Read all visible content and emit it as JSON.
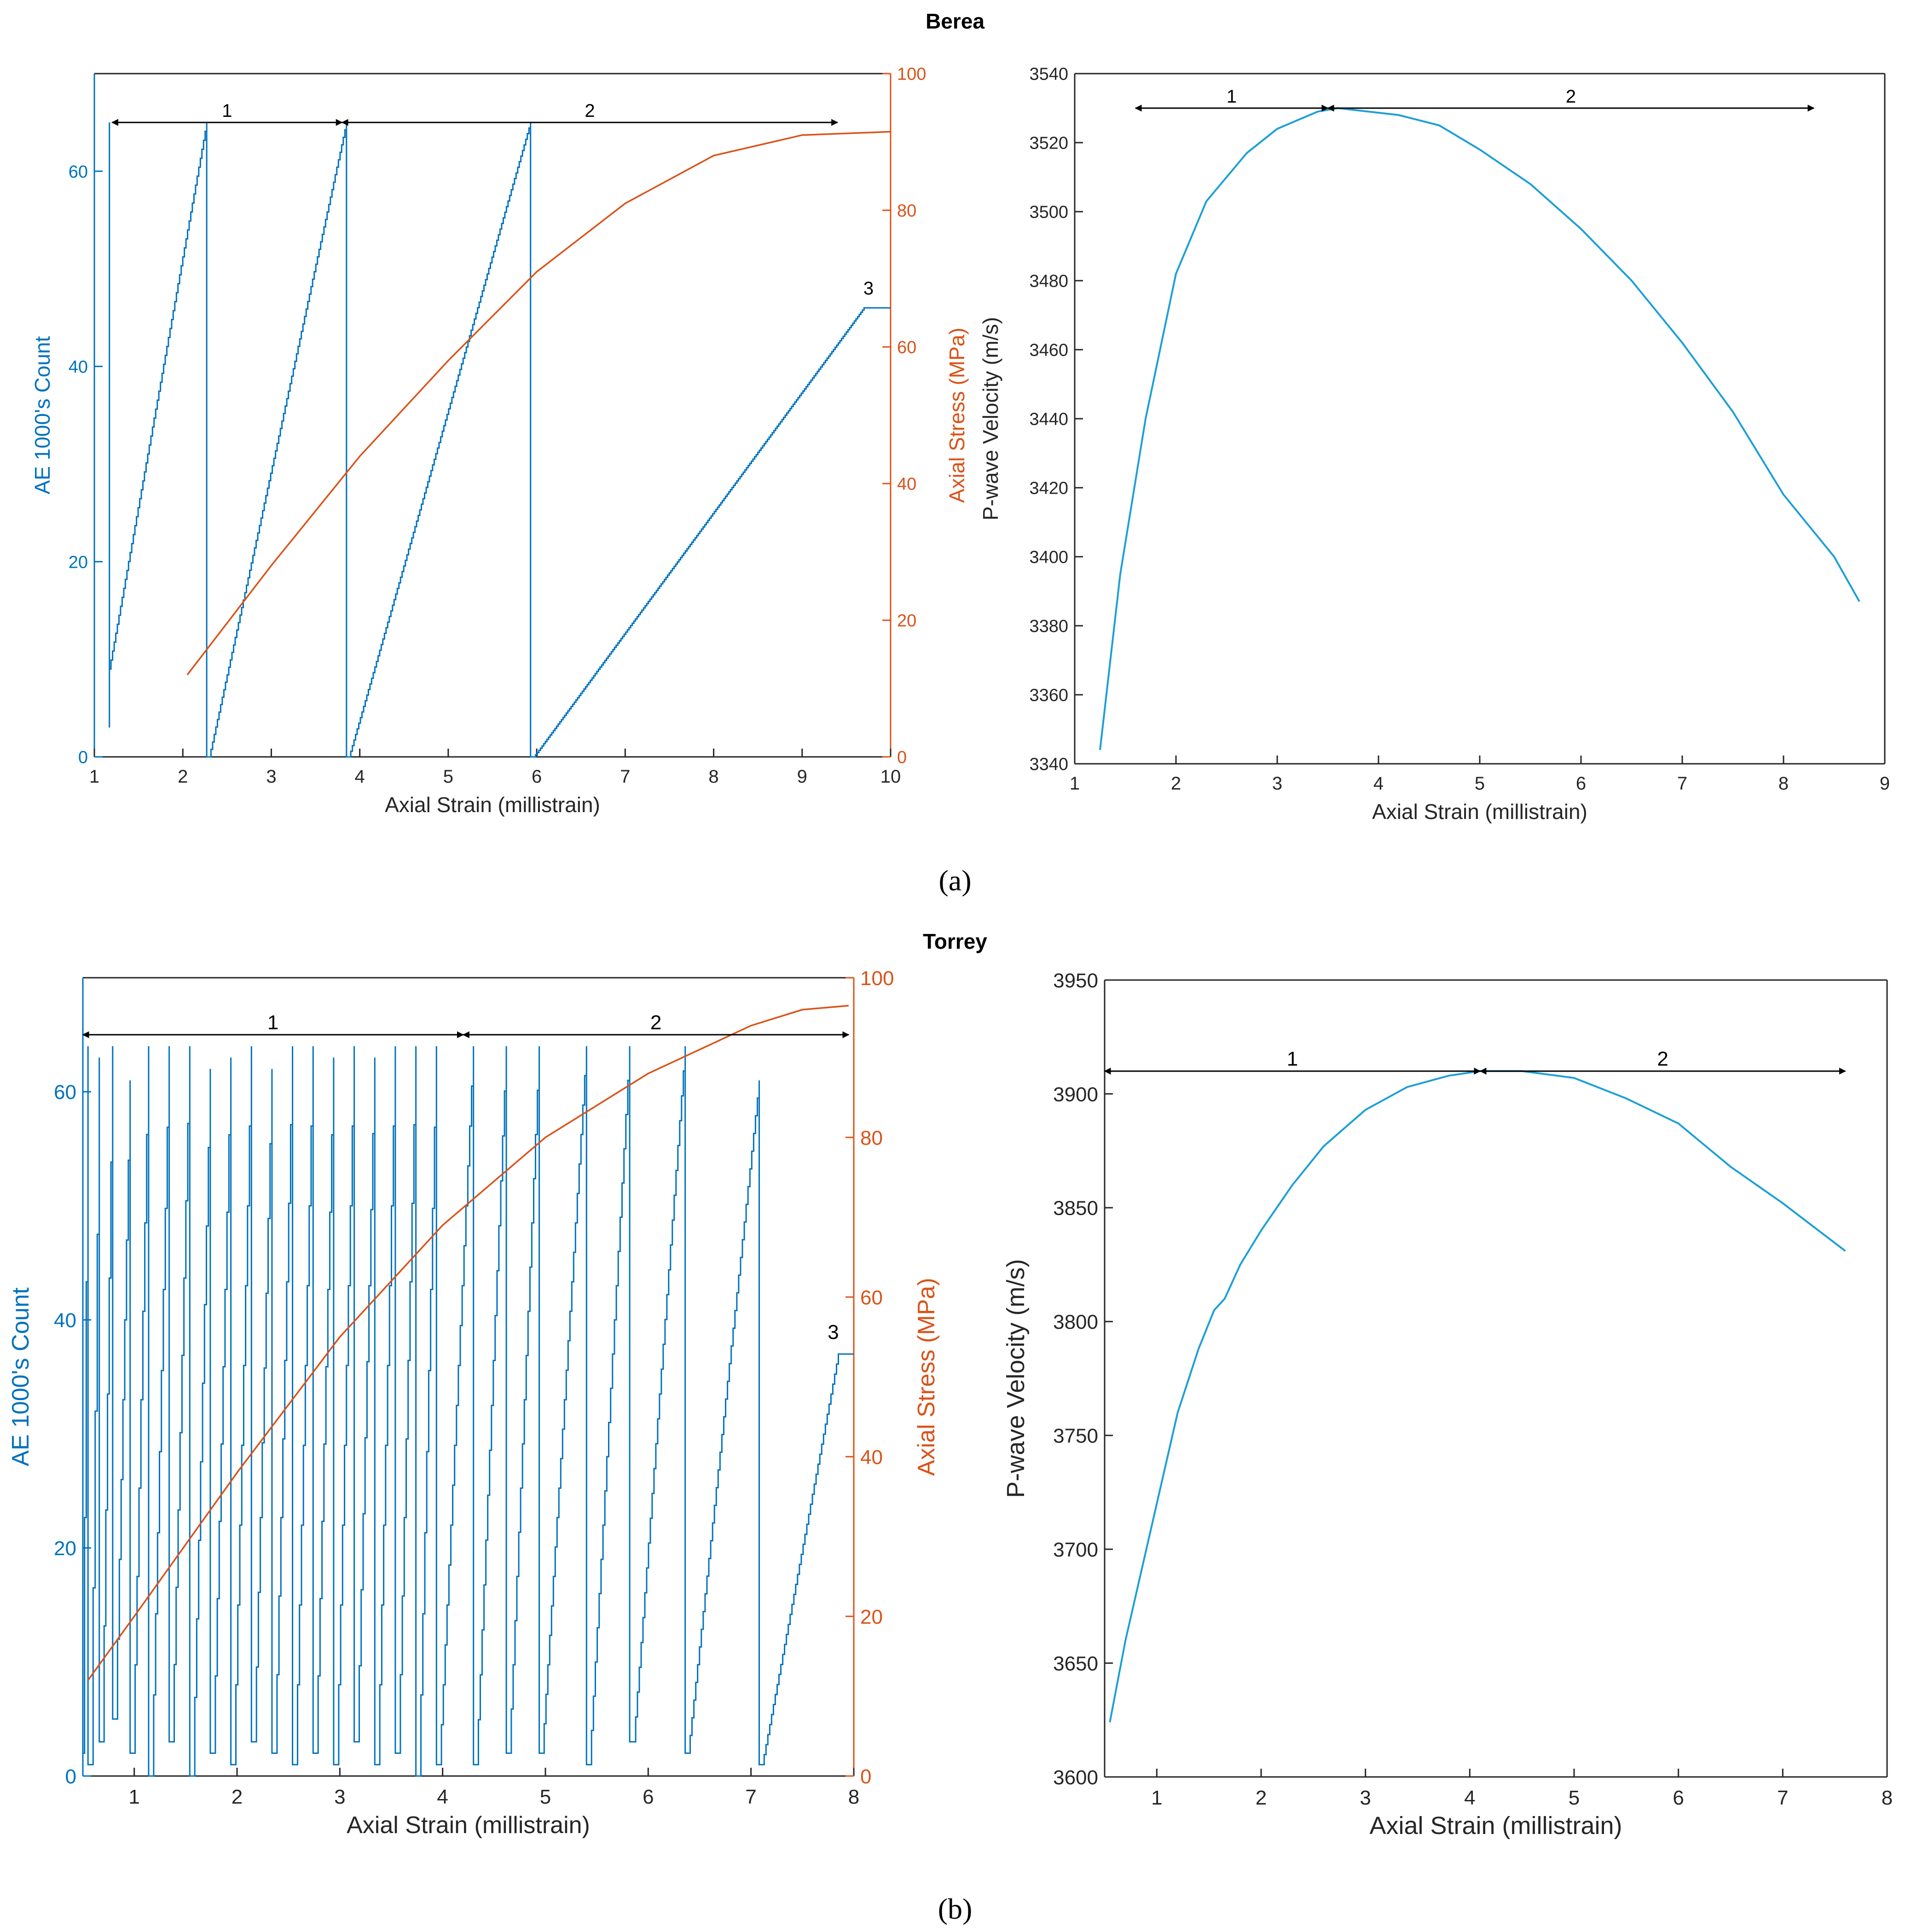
{
  "figure": {
    "title_a": "Berea",
    "title_b": "Torrey",
    "caption_a": "(a)",
    "caption_b": "(b)",
    "colors": {
      "ae": "#0072BD",
      "stress": "#D95319",
      "pwave": "#1C9FD6",
      "arrow": "#000000",
      "axis": "#262626"
    }
  },
  "chart_data": [
    {
      "id": "a-left",
      "type": "line",
      "title": "Berea",
      "xlabel": "Axial Strain (millistrain)",
      "ylabel": "AE 1000's Count",
      "y2label": "Axial Stress (MPa)",
      "xlim": [
        1,
        10
      ],
      "ylim": [
        0,
        70
      ],
      "y2lim": [
        0,
        100
      ],
      "xticks": [
        1,
        2,
        3,
        4,
        5,
        6,
        7,
        8,
        9,
        10
      ],
      "yticks": [
        0,
        20,
        40,
        60
      ],
      "y2ticks": [
        0,
        20,
        40,
        60,
        80,
        100
      ],
      "series": [
        {
          "name": "AE 1000's Count",
          "axis": "left",
          "kind": "ramps",
          "ramps": [
            [
              1.17,
              1.17,
              3,
              65
            ],
            [
              1.17,
              2.27,
              9,
              65
            ],
            [
              2.3,
              3.85,
              0,
              65
            ],
            [
              3.88,
              5.93,
              0,
              65
            ],
            [
              5.97,
              9.7,
              0,
              46
            ]
          ],
          "tail": [
            [
              9.7,
              46
            ],
            [
              10.0,
              46
            ]
          ]
        },
        {
          "name": "Axial Stress (MPa)",
          "axis": "right",
          "kind": "curve",
          "x": [
            2.05,
            3.0,
            4.0,
            5.0,
            6.0,
            7.0,
            8.0,
            9.0,
            10.0
          ],
          "y": [
            12,
            28,
            44,
            58,
            71,
            81,
            88,
            91,
            91.5
          ]
        }
      ],
      "annotations": [
        {
          "text": "1",
          "from": 1.2,
          "to": 3.8,
          "y": 65
        },
        {
          "text": "2",
          "from": 3.8,
          "to": 9.4,
          "y": 65
        },
        {
          "text": "3",
          "x": 9.75,
          "y": 47
        }
      ]
    },
    {
      "id": "a-right",
      "type": "line",
      "title": "",
      "xlabel": "Axial Strain (millistrain)",
      "ylabel": "P-wave Velocity (m/s)",
      "xlim": [
        1,
        9
      ],
      "ylim": [
        3340,
        3540
      ],
      "xticks": [
        1,
        2,
        3,
        4,
        5,
        6,
        7,
        8,
        9
      ],
      "yticks": [
        3340,
        3360,
        3380,
        3400,
        3420,
        3440,
        3460,
        3480,
        3500,
        3520,
        3540
      ],
      "series": [
        {
          "name": "P-wave Velocity",
          "x": [
            1.25,
            1.45,
            1.7,
            2.0,
            2.3,
            2.7,
            3.0,
            3.4,
            3.6,
            4.2,
            4.6,
            5.0,
            5.5,
            6.0,
            6.5,
            7.0,
            7.5,
            8.0,
            8.5,
            8.75
          ],
          "y": [
            3344,
            3395,
            3440,
            3482,
            3503,
            3517,
            3524,
            3529,
            3530,
            3528,
            3525,
            3518,
            3508,
            3495,
            3480,
            3462,
            3442,
            3418,
            3400,
            3387
          ]
        }
      ],
      "annotations": [
        {
          "text": "1",
          "from": 1.6,
          "to": 3.5,
          "y": 3530
        },
        {
          "text": "2",
          "from": 3.5,
          "to": 8.3,
          "y": 3530
        }
      ]
    },
    {
      "id": "b-left",
      "type": "line",
      "title": "Torrey",
      "xlabel": "Axial Strain (millistrain)",
      "ylabel": "AE 1000's Count",
      "y2label": "Axial Stress (MPa)",
      "xlim": [
        0.5,
        8
      ],
      "ylim": [
        0,
        70
      ],
      "y2lim": [
        0,
        100
      ],
      "xticks": [
        1,
        2,
        3,
        4,
        5,
        6,
        7,
        8
      ],
      "yticks": [
        0,
        20,
        40,
        60
      ],
      "y2ticks": [
        0,
        20,
        40,
        60,
        80,
        100
      ],
      "series": [
        {
          "name": "AE 1000's Count",
          "axis": "left",
          "kind": "ramps",
          "ramps": [
            [
              0.5,
              0.55,
              2,
              64
            ],
            [
              0.58,
              0.66,
              1,
              63
            ],
            [
              0.69,
              0.79,
              3,
              64
            ],
            [
              0.82,
              0.96,
              5,
              61
            ],
            [
              0.99,
              1.14,
              2,
              64
            ],
            [
              1.17,
              1.34,
              0,
              64
            ],
            [
              1.37,
              1.54,
              3,
              64
            ],
            [
              1.57,
              1.74,
              0,
              62
            ],
            [
              1.77,
              1.94,
              2,
              63
            ],
            [
              1.97,
              2.14,
              1,
              64
            ],
            [
              2.17,
              2.34,
              3,
              62
            ],
            [
              2.37,
              2.54,
              2,
              64
            ],
            [
              2.57,
              2.74,
              1,
              64
            ],
            [
              2.77,
              2.94,
              2,
              63
            ],
            [
              2.97,
              3.14,
              1,
              64
            ],
            [
              3.17,
              3.34,
              3,
              63
            ],
            [
              3.37,
              3.54,
              1,
              64
            ],
            [
              3.57,
              3.74,
              2,
              64
            ],
            [
              3.77,
              3.94,
              0,
              64
            ],
            [
              3.97,
              4.3,
              1,
              64
            ],
            [
              4.33,
              4.62,
              1,
              64
            ],
            [
              4.65,
              4.94,
              2,
              64
            ],
            [
              4.97,
              5.4,
              2,
              64
            ],
            [
              5.43,
              5.82,
              1,
              64
            ],
            [
              5.86,
              6.36,
              3,
              64
            ],
            [
              6.39,
              7.08,
              2,
              61
            ],
            [
              7.11,
              7.85,
              1,
              37
            ]
          ],
          "tail": [
            [
              7.85,
              37
            ],
            [
              8.0,
              37
            ]
          ]
        },
        {
          "name": "Axial Stress (MPa)",
          "axis": "right",
          "kind": "curve",
          "x": [
            0.55,
            1.0,
            2.0,
            3.0,
            4.0,
            5.0,
            6.0,
            7.0,
            7.5,
            7.95
          ],
          "y": [
            12,
            20,
            38,
            55,
            69,
            80,
            88,
            94,
            96,
            96.5
          ]
        }
      ],
      "annotations": [
        {
          "text": "1",
          "from": 0.5,
          "to": 4.2,
          "y": 65
        },
        {
          "text": "2",
          "from": 4.2,
          "to": 7.95,
          "y": 65
        },
        {
          "text": "3",
          "x": 7.8,
          "y": 38
        }
      ]
    },
    {
      "id": "b-right",
      "type": "line",
      "title": "",
      "xlabel": "Axial Strain (millistrain)",
      "ylabel": "P-wave Velocity (m/s)",
      "xlim": [
        0.5,
        8
      ],
      "ylim": [
        3600,
        3950
      ],
      "xticks": [
        1,
        2,
        3,
        4,
        5,
        6,
        7,
        8
      ],
      "yticks": [
        3600,
        3650,
        3700,
        3750,
        3800,
        3850,
        3900,
        3950
      ],
      "series": [
        {
          "name": "P-wave Velocity",
          "x": [
            0.55,
            0.7,
            0.85,
            1.0,
            1.2,
            1.4,
            1.55,
            1.65,
            1.8,
            2.0,
            2.3,
            2.6,
            3.0,
            3.4,
            3.8,
            4.1,
            4.5,
            5.0,
            5.5,
            6.0,
            6.5,
            7.0,
            7.6
          ],
          "y": [
            3624,
            3660,
            3690,
            3720,
            3760,
            3788,
            3805,
            3810,
            3825,
            3840,
            3860,
            3877,
            3893,
            3903,
            3908,
            3910,
            3910,
            3907,
            3898,
            3887,
            3868,
            3852,
            3831
          ]
        }
      ],
      "annotations": [
        {
          "text": "1",
          "from": 0.5,
          "to": 4.1,
          "y": 3910
        },
        {
          "text": "2",
          "from": 4.1,
          "to": 7.6,
          "y": 3910
        }
      ]
    }
  ]
}
